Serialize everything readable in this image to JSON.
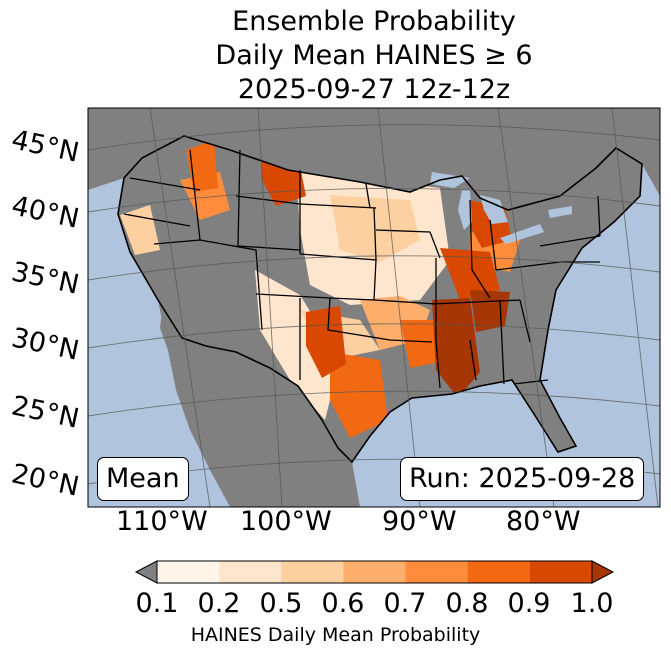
{
  "title": {
    "line1": "Ensemble Probability",
    "line2": "Daily Mean HAINES ≥ 6",
    "line3": "2025-09-27 12z-12z"
  },
  "map": {
    "region": "Contiguous United States",
    "lat_labels": [
      "45°N",
      "40°N",
      "35°N",
      "30°N",
      "25°N",
      "20°N"
    ],
    "lon_labels": [
      "110°W",
      "100°W",
      "90°W",
      "80°W"
    ],
    "mean_label": "Mean",
    "run_label": "Run: 2025-09-28",
    "colors": {
      "ocean": "#b0c4de",
      "land_no_prob": "#808080",
      "borders": "#000000",
      "gridlines": "#555555"
    },
    "probability_areas": [
      {
        "area": "Northern Rockies / Montana",
        "level": 0.9
      },
      {
        "area": "Idaho / Oregon",
        "level": 0.8
      },
      {
        "area": "Western Oklahoma / Texas Panhandle",
        "level": 0.9
      },
      {
        "area": "Central Texas",
        "level": 0.8
      },
      {
        "area": "Ohio Valley / Indiana",
        "level": 0.9
      },
      {
        "area": "Lower Mississippi Valley",
        "level": 1.0
      },
      {
        "area": "Great Plains",
        "level": 0.5
      }
    ]
  },
  "colorbar": {
    "ticks": [
      "0.1",
      "0.2",
      "0.5",
      "0.6",
      "0.7",
      "0.8",
      "0.9",
      "1.0"
    ],
    "colors": [
      "#fff5eb",
      "#fee6ce",
      "#fdd0a2",
      "#fdae6b",
      "#fd8d3c",
      "#f16913",
      "#d94801"
    ],
    "under_color": "#808080",
    "over_color": "#a63603",
    "label": "HAINES Daily Mean Probability"
  }
}
